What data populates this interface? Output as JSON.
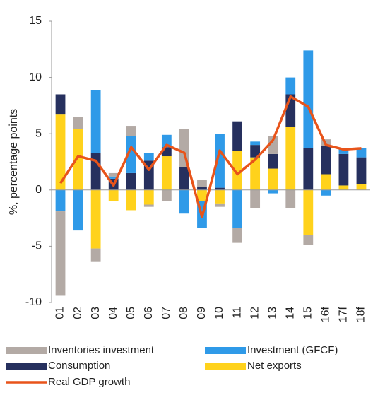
{
  "chart_data": {
    "type": "bar",
    "y_label": "%, percentage points",
    "categories": [
      "01",
      "02",
      "03",
      "04",
      "05",
      "06",
      "07",
      "08",
      "09",
      "10",
      "11",
      "12",
      "13",
      "14",
      "15",
      "16f",
      "17f",
      "18f"
    ],
    "series": [
      {
        "name": "Inventories investment",
        "color": "#b3aaa5",
        "values": [
          -7.5,
          1.1,
          -1.2,
          0.3,
          0.9,
          -0.2,
          -1.0,
          3.4,
          0.6,
          -0.3,
          -1.3,
          -1.6,
          1.6,
          -1.6,
          -0.9,
          0.6,
          0,
          0
        ]
      },
      {
        "name": "Investment (GFCF)",
        "color": "#2f9ae8",
        "values": [
          -1.9,
          -3.6,
          5.6,
          0.2,
          3.3,
          0.7,
          1.1,
          -2.1,
          -2.4,
          4.8,
          -3.4,
          0.3,
          -0.3,
          1.5,
          8.7,
          -0.5,
          0.5,
          0.8
        ]
      },
      {
        "name": "Consumption",
        "color": "#26305e",
        "values": [
          1.8,
          0,
          3.3,
          1.0,
          1.5,
          2.6,
          0.8,
          2.0,
          0.3,
          0.2,
          2.6,
          1.1,
          1.3,
          2.9,
          3.7,
          2.5,
          2.8,
          2.4
        ]
      },
      {
        "name": "Net exports",
        "color": "#ffd21c",
        "values": [
          6.7,
          5.4,
          -5.2,
          -1.0,
          -1.8,
          -1.3,
          3.0,
          0,
          -1.0,
          -1.2,
          3.5,
          2.9,
          1.9,
          5.6,
          -4.0,
          1.4,
          0.4,
          0.5
        ]
      }
    ],
    "line": {
      "name": "Real GDP growth",
      "color": "#e8541a",
      "values": [
        0.6,
        3.0,
        2.6,
        0.4,
        3.8,
        1.8,
        4.0,
        3.3,
        -2.4,
        3.5,
        1.4,
        2.7,
        4.4,
        8.3,
        7.4,
        4.0,
        3.6,
        3.7
      ]
    },
    "ylim": [
      -10,
      15
    ],
    "yticks": [
      -10,
      -5,
      0,
      5,
      10,
      15
    ]
  }
}
